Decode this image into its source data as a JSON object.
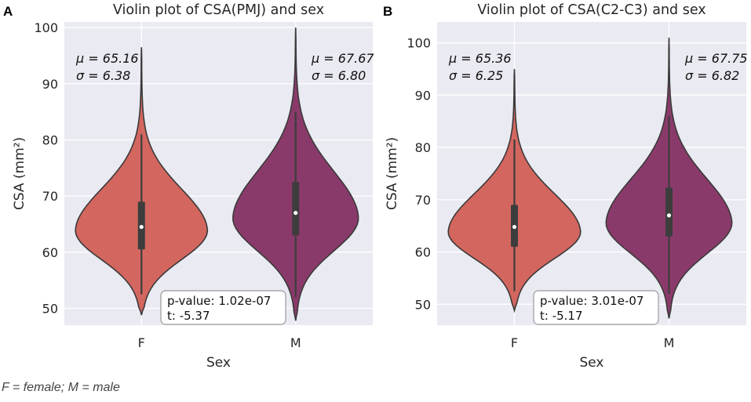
{
  "caption": "F = female; M = male",
  "colors": {
    "female": "#d3665f",
    "male": "#8a3a6a",
    "plot_bg": "#eaeaf2",
    "grid": "#ffffff",
    "edge": "#3a3a3a"
  },
  "chart_data": [
    {
      "type": "violin",
      "panel_label": "A",
      "title": "Violin plot of CSA(PMJ) and sex",
      "xlabel": "Sex",
      "ylabel": "CSA (mm²)",
      "categories": [
        "F",
        "M"
      ],
      "yticks": [
        50,
        60,
        70,
        80,
        90,
        100
      ],
      "ylim": [
        47,
        101
      ],
      "grid": true,
      "stats": [
        {
          "category": "F",
          "mu_text": "μ = 65.16",
          "sigma_text": "σ = 6.38",
          "median": 64.5,
          "q1": 60.5,
          "q3": 69,
          "whisker_low": 52.5,
          "whisker_high": 81,
          "min": 48.8,
          "max": 96.5,
          "mode": 63.8,
          "spread": 6.0,
          "max_halfwidth": 0.82
        },
        {
          "category": "M",
          "mu_text": "μ = 67.67",
          "sigma_text": "σ = 6.80",
          "median": 67,
          "q1": 63,
          "q3": 72.5,
          "whisker_low": 52,
          "whisker_high": 85,
          "min": 47.8,
          "max": 100,
          "mode": 66,
          "spread": 6.8,
          "max_halfwidth": 0.78
        }
      ],
      "annotation": {
        "line1": "p-value: 1.02e-07",
        "line2": "t: -5.37"
      }
    },
    {
      "type": "violin",
      "panel_label": "B",
      "title": "Violin plot of CSA(C2-C3) and sex",
      "xlabel": "Sex",
      "ylabel": "CSA (mm²)",
      "categories": [
        "F",
        "M"
      ],
      "yticks": [
        50,
        60,
        70,
        80,
        90,
        100
      ],
      "ylim": [
        46,
        104
      ],
      "grid": true,
      "stats": [
        {
          "category": "F",
          "mu_text": "μ = 65.36",
          "sigma_text": "σ = 6.25",
          "median": 64.8,
          "q1": 61,
          "q3": 69,
          "whisker_low": 52.5,
          "whisker_high": 81.5,
          "min": 48.8,
          "max": 95,
          "mode": 63.8,
          "spread": 5.9,
          "max_halfwidth": 0.82
        },
        {
          "category": "M",
          "mu_text": "μ = 67.75",
          "sigma_text": "σ = 6.82",
          "median": 67,
          "q1": 63,
          "q3": 72.3,
          "whisker_low": 52,
          "whisker_high": 86,
          "min": 47.3,
          "max": 101,
          "mode": 65.5,
          "spread": 6.8,
          "max_halfwidth": 0.78
        }
      ],
      "annotation": {
        "line1": "p-value: 3.01e-07",
        "line2": "t: -5.17"
      }
    }
  ]
}
